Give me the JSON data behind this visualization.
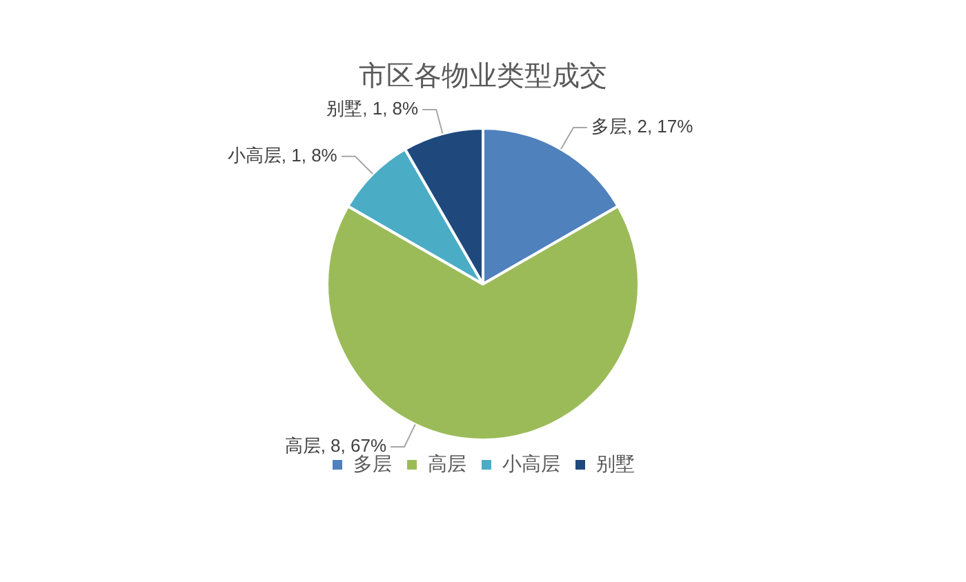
{
  "chart_data": {
    "type": "pie",
    "title": "市区各物业类型成交",
    "categories": [
      "多层",
      "高层",
      "小高层",
      "别墅"
    ],
    "values": [
      2,
      8,
      1,
      1
    ],
    "colors": [
      "#4f81bd",
      "#9bbb59",
      "#4bacc6",
      "#1f497d"
    ],
    "value_labels": [
      "多层, 2, 17%",
      "高层, 8, 67%",
      "小高层, 1, 8%",
      "别墅, 1, 8%"
    ],
    "legend": "bottom"
  }
}
